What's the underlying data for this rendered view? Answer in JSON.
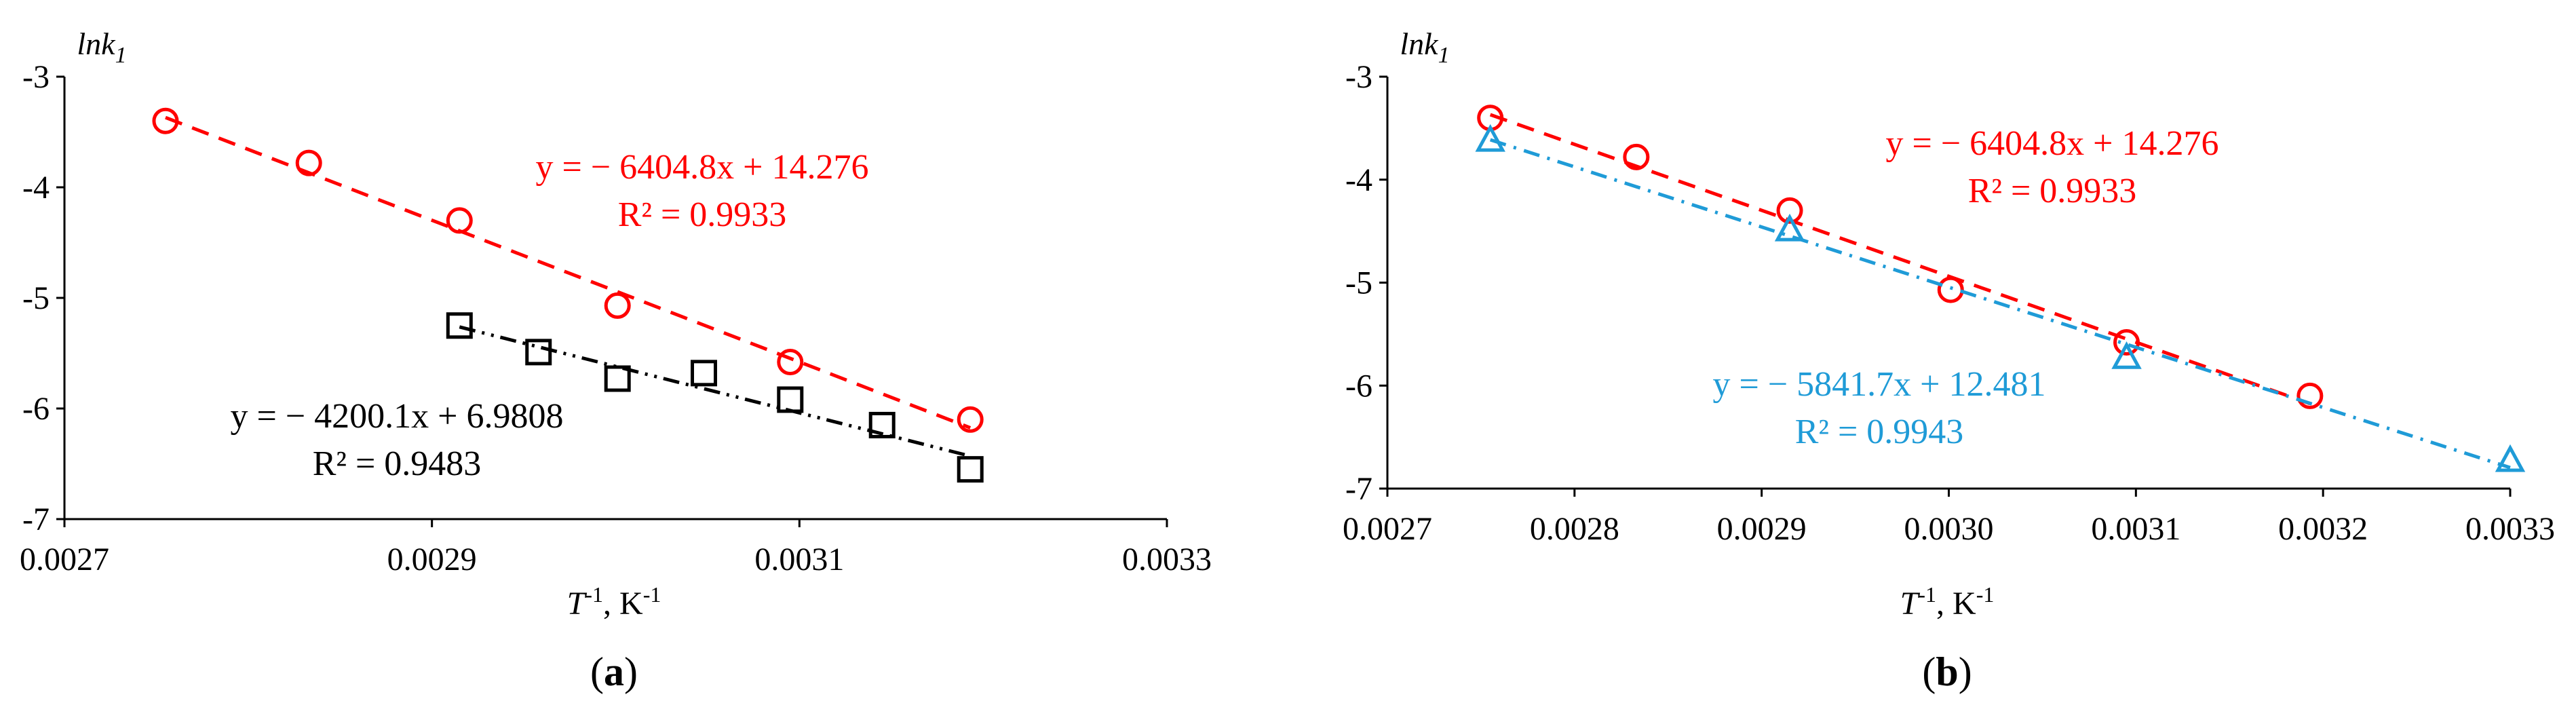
{
  "chart_data": [
    {
      "type": "scatter",
      "panel_label": "a",
      "ylabel": {
        "base": "lnk",
        "sub": "1"
      },
      "xlabel": {
        "pre": "T",
        "sup1": "-1",
        "mid": ", K",
        "sup2": "-1"
      },
      "xlim": [
        0.0027,
        0.0033
      ],
      "ylim": [
        -7,
        -3
      ],
      "xticks": [
        0.0027,
        0.0029,
        0.0031,
        0.0033
      ],
      "xtick_labels": [
        "0.0027",
        "0.0029",
        "0.0031",
        "0.0033"
      ],
      "yticks": [
        -3,
        -4,
        -5,
        -6,
        -7
      ],
      "ytick_labels": [
        "-3",
        "-4",
        "-5",
        "-6",
        "-7"
      ],
      "series": [
        {
          "marker": "circle",
          "color": "#ff0000",
          "line_style": "dashed",
          "x": [
            0.002755,
            0.002833,
            0.002915,
            0.003001,
            0.003095,
            0.003193
          ],
          "y": [
            -3.4,
            -3.78,
            -4.3,
            -5.07,
            -5.58,
            -6.1
          ],
          "fit": {
            "slope": -6404.8,
            "intercept": 14.276
          },
          "equation": "y = − 6404.8x + 14.276",
          "r2": "R² = 0.9933"
        },
        {
          "marker": "square",
          "color": "#000000",
          "line_style": "dash-dot-dot",
          "x": [
            0.002915,
            0.002958,
            0.003001,
            0.003048,
            0.003095,
            0.003145,
            0.003193
          ],
          "y": [
            -5.25,
            -5.49,
            -5.73,
            -5.68,
            -5.92,
            -6.15,
            -6.55
          ],
          "fit": {
            "slope": -4200.1,
            "intercept": 6.9808
          },
          "equation": "y = − 4200.1x + 6.9808",
          "r2": "R² = 0.9483"
        }
      ]
    },
    {
      "type": "scatter",
      "panel_label": "b",
      "ylabel": {
        "base": "lnk",
        "sub": "1"
      },
      "xlabel": {
        "pre": "T",
        "sup1": "-1",
        "mid": ", K",
        "sup2": "-1"
      },
      "xlim": [
        0.0027,
        0.0033
      ],
      "ylim": [
        -7,
        -3
      ],
      "xticks": [
        0.0027,
        0.0028,
        0.0029,
        0.003,
        0.0031,
        0.0032,
        0.0033
      ],
      "xtick_labels": [
        "0.0027",
        "0.0028",
        "0.0029",
        "0.0030",
        "0.0031",
        "0.0032",
        "0.0033"
      ],
      "yticks": [
        -3,
        -4,
        -5,
        -6,
        -7
      ],
      "ytick_labels": [
        "-3",
        "-4",
        "-5",
        "-6",
        "-7"
      ],
      "series": [
        {
          "marker": "circle",
          "color": "#ff0000",
          "line_style": "dashed",
          "x": [
            0.002755,
            0.002833,
            0.002915,
            0.003001,
            0.003095,
            0.003193
          ],
          "y": [
            -3.4,
            -3.78,
            -4.3,
            -5.07,
            -5.58,
            -6.1
          ],
          "fit": {
            "slope": -6404.8,
            "intercept": 14.276
          },
          "equation": "y = − 6404.8x + 14.276",
          "r2": "R² = 0.9933"
        },
        {
          "marker": "triangle",
          "color": "#1f9bd7",
          "line_style": "dash-dot",
          "x": [
            0.002755,
            0.002915,
            0.003095,
            0.0033
          ],
          "y": [
            -3.62,
            -4.49,
            -5.73,
            -6.73
          ],
          "fit": {
            "slope": -5841.7,
            "intercept": 12.481
          },
          "equation": "y = − 5841.7x + 12.481",
          "r2": "R² = 0.9943"
        }
      ]
    }
  ]
}
